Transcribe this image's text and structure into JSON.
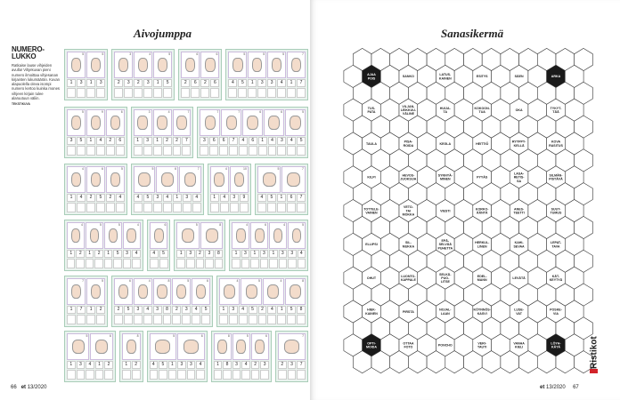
{
  "left_page": {
    "title": "Aivojumppa",
    "intro": {
      "heading": "NUMERO-LUKKO",
      "text": "Ratkaise lause vihjeiden avulla! Vihjekuvan pieni numero ilmoittaa vihjesanan kirjainten lukumäärän. Kuvan alapuolella oleva isompi numero kertoo kuinka mones vihjeen kirjain tulee alaruutuun väliin.",
      "credit": "TEKSTIKUVA"
    },
    "strips": [
      [
        {
          "pics": [
            5,
            5
          ],
          "digits": [
            1,
            3,
            1,
            3
          ]
        },
        {
          "pics": [
            3,
            4,
            5
          ],
          "digits": [
            2,
            3,
            2,
            3,
            1,
            5
          ]
        },
        {
          "pics": [
            6,
            6
          ],
          "digits": [
            2,
            6,
            2,
            6
          ]
        },
        {
          "pics": [
            5,
            5,
            5,
            7
          ],
          "digits": [
            4,
            5,
            1,
            3,
            3,
            4,
            1,
            7
          ]
        }
      ],
      [
        {
          "pics": [
            5,
            9,
            6
          ],
          "digits": [
            3,
            5,
            1,
            4,
            2,
            6
          ]
        },
        {
          "pics": [
            3,
            4,
            7
          ],
          "digits": [
            1,
            3,
            1,
            2,
            2,
            7
          ]
        },
        {
          "pics": [
            7,
            7,
            6,
            6,
            5
          ],
          "digits": [
            3,
            6,
            6,
            7,
            4,
            6,
            1,
            4,
            3,
            4,
            5
          ]
        }
      ],
      [
        {
          "pics": [
            4,
            6,
            5
          ],
          "digits": [
            1,
            4,
            2,
            5,
            2,
            4
          ]
        },
        {
          "pics": [
            5,
            6,
            7
          ],
          "digits": [
            4,
            5,
            3,
            4,
            1,
            3,
            4
          ]
        },
        {
          "pics": [
            4,
            10
          ],
          "digits": [
            1,
            4,
            3,
            9
          ]
        },
        {
          "pics": [
            5,
            7
          ],
          "digits": [
            4,
            5,
            1,
            6,
            7
          ]
        }
      ],
      [
        {
          "pics": [
            4,
            5,
            5,
            4
          ],
          "digits": [
            1,
            2,
            1,
            2,
            1,
            5,
            3,
            4
          ]
        },
        {
          "pics": [
            6
          ],
          "digits": [
            4,
            5
          ]
        },
        {
          "pics": [
            5,
            8
          ],
          "digits": [
            1,
            3,
            2,
            3,
            8
          ]
        },
        {
          "pics": [
            4,
            6,
            4,
            5
          ],
          "digits": [
            1,
            3,
            1,
            3,
            1,
            3,
            3,
            4
          ]
        }
      ],
      [
        {
          "pics": [
            7,
            5
          ],
          "digits": [
            1,
            7,
            1,
            2
          ]
        },
        {
          "pics": [
            6,
            4,
            8,
            5,
            6
          ],
          "digits": [
            2,
            5,
            3,
            4,
            3,
            8,
            2,
            3,
            4,
            5
          ]
        },
        {
          "pics": [
            4,
            5,
            4,
            8
          ],
          "digits": [
            1,
            3,
            4,
            5,
            2,
            4,
            1,
            5,
            8
          ]
        }
      ],
      [
        {
          "pics": [
            5,
            6
          ],
          "digits": [
            1,
            3,
            4,
            1,
            2
          ]
        },
        {
          "pics": [
            8
          ],
          "digits": [
            1,
            2
          ]
        },
        {
          "pics": [
            5,
            6
          ],
          "digits": [
            4,
            5,
            1,
            3,
            3,
            4
          ]
        },
        {
          "pics": [
            8,
            5,
            6
          ],
          "digits": [
            1,
            8,
            3,
            4,
            2,
            3
          ]
        },
        {
          "pics": [
            7
          ],
          "digits": [
            2,
            3,
            7
          ]
        }
      ]
    ],
    "folio": {
      "page": "66",
      "mag": "et",
      "issue": "13/2020"
    }
  },
  "right_page": {
    "title": "Sanasikermä",
    "word_rows": [
      [
        {
          "t": "AJAA POIS",
          "dark": true
        },
        {
          "t": "SANKO"
        },
        {
          "t": "LATUS-KAINEN"
        },
        {
          "t": "ESITYS"
        },
        {
          "t": "SÄEN"
        },
        {
          "t": "ARKA",
          "dark": true
        }
      ],
      [
        {
          "t": "TUS-PATA"
        },
        {
          "t": "VILJAN-LEIKKUU-VÄLINE"
        },
        {
          "t": "HUIJA-TA"
        },
        {
          "t": "KOKOON-TUA"
        },
        {
          "t": "OKA"
        },
        {
          "t": "TYKYT-TÄÄ"
        }
      ],
      [
        {
          "t": "TAULA"
        },
        {
          "t": "PISA-ROIDA"
        },
        {
          "t": "KEGLA"
        },
        {
          "t": "HEITTIÖ"
        },
        {
          "t": "RYYPPY-KELLÄ"
        },
        {
          "t": "KOVA RASITUS"
        }
      ],
      [
        {
          "t": "KILPI"
        },
        {
          "t": "HEVOS-JUOKSIJA"
        },
        {
          "t": "SYNNYÄ-MINEN"
        },
        {
          "t": "PYYÄS"
        },
        {
          "t": "LASA-RETIS-SA"
        },
        {
          "t": "SILMÄN-PISTÄVÄ"
        }
      ],
      [
        {
          "t": "TOTTELE-VAINEN"
        },
        {
          "t": "VETO-TAI MOKKA"
        },
        {
          "t": "VIESTI"
        },
        {
          "t": "KORKO-ÄÄNTÄ"
        },
        {
          "t": "ANES-TEETTI"
        },
        {
          "t": "SUUT-TUMUS"
        }
      ],
      [
        {
          "t": "ELLIPSI"
        },
        {
          "t": "SIL-MUKKA"
        },
        {
          "t": "EPÄ-SELVÄÄ PUHETTA"
        },
        {
          "t": "HERKUL-LINEN"
        },
        {
          "t": "KAHI-SEVAA"
        },
        {
          "t": "LEPAT-TAVA"
        }
      ],
      [
        {
          "t": "OHUT"
        },
        {
          "t": "LUONTO-KAPPALE"
        },
        {
          "t": "SELKÄ-PUO-LITSE"
        },
        {
          "t": "EDEL-MANN"
        },
        {
          "t": "LEVÄTÄ"
        },
        {
          "t": "KÄT-KEYTYÄ"
        }
      ],
      [
        {
          "t": "HIEK-KAINEN"
        },
        {
          "t": "PIRSTA"
        },
        {
          "t": "NOJAL-LAAN"
        },
        {
          "t": "KÖYNNÖS-KASVI"
        },
        {
          "t": "LUSE-VAT"
        },
        {
          "t": "POSKE-VIA"
        }
      ],
      [
        {
          "t": "OPTI-MOIDA",
          "dark": true
        },
        {
          "t": "OTTAA FOTO"
        },
        {
          "t": "PONCHO"
        },
        {
          "t": "VERI-TAUTI"
        },
        {
          "t": "VANHA KIELI"
        },
        {
          "t": "LÖYH-KÄTÄ",
          "dark": true
        }
      ]
    ],
    "logo": "Ristikot",
    "folio": {
      "page": "67",
      "mag": "et",
      "issue": "13/2020"
    }
  },
  "colors": {
    "strip_border": "#a9cdb8",
    "dark_hex": "#1a1a1a",
    "logo_red": "#d2232a"
  }
}
